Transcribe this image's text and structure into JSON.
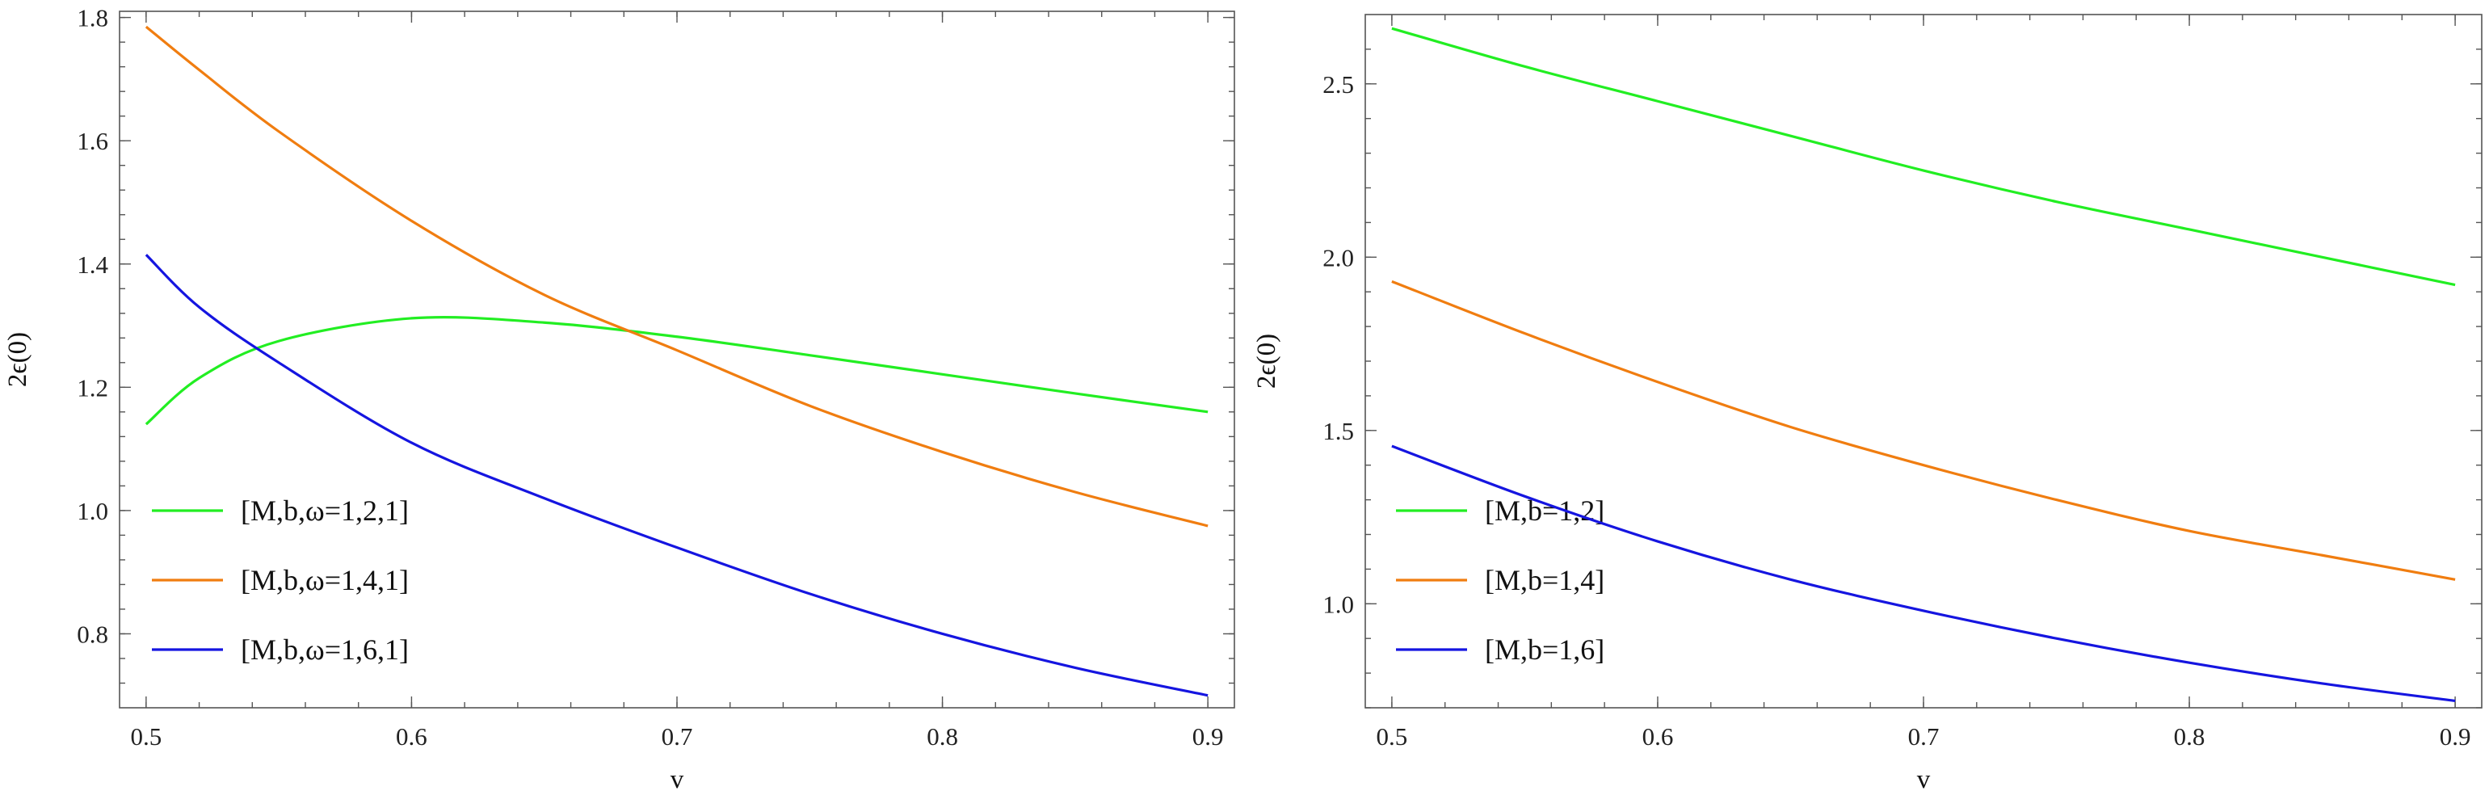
{
  "colors": {
    "green": "#22ee22",
    "orange": "#f07d10",
    "blue": "#1515e0"
  },
  "chart_data": [
    {
      "type": "line",
      "xlabel": "v",
      "ylabel": "2ϵ(0)",
      "xlim": [
        0.49,
        0.91
      ],
      "ylim": [
        0.68,
        1.81
      ],
      "xticks": [
        0.5,
        0.6,
        0.7,
        0.8,
        0.9
      ],
      "xtick_labels": [
        "0.5",
        "0.6",
        "0.7",
        "0.8",
        "0.9"
      ],
      "yticks": [
        0.8,
        1.0,
        1.2,
        1.4,
        1.6,
        1.8
      ],
      "ytick_labels": [
        "0.8",
        "1.0",
        "1.2",
        "1.4",
        "1.6",
        "1.8"
      ],
      "legend_position": "bottom-left",
      "x": [
        0.5,
        0.52,
        0.55,
        0.6,
        0.65,
        0.7,
        0.75,
        0.8,
        0.85,
        0.9
      ],
      "series": [
        {
          "name": "[M,b,ω=1,2,1]",
          "color": "#22ee22",
          "values": [
            1.14,
            1.215,
            1.275,
            1.312,
            1.305,
            1.282,
            1.252,
            1.221,
            1.19,
            1.16
          ]
        },
        {
          "name": "[M,b,ω=1,4,1]",
          "color": "#f07d10",
          "values": [
            1.785,
            1.715,
            1.615,
            1.47,
            1.35,
            1.26,
            1.17,
            1.095,
            1.03,
            0.975
          ]
        },
        {
          "name": "[M,b,ω=1,6,1]",
          "color": "#1515e0",
          "values": [
            1.415,
            1.33,
            1.24,
            1.11,
            1.02,
            0.94,
            0.865,
            0.8,
            0.745,
            0.7
          ]
        }
      ]
    },
    {
      "type": "line",
      "xlabel": "v",
      "ylabel": "2ϵ(0)",
      "xlim": [
        0.49,
        0.91
      ],
      "ylim": [
        0.7,
        2.7
      ],
      "xticks": [
        0.5,
        0.6,
        0.7,
        0.8,
        0.9
      ],
      "xtick_labels": [
        "0.5",
        "0.6",
        "0.7",
        "0.8",
        "0.9"
      ],
      "yticks": [
        1.0,
        1.5,
        2.0,
        2.5
      ],
      "ytick_labels": [
        "1.0",
        "1.5",
        "2.0",
        "2.5"
      ],
      "legend_position": "bottom-left",
      "x": [
        0.5,
        0.55,
        0.6,
        0.65,
        0.7,
        0.75,
        0.8,
        0.85,
        0.9
      ],
      "series": [
        {
          "name": "[M,b=1,2]",
          "color": "#22ee22",
          "values": [
            2.66,
            2.55,
            2.45,
            2.35,
            2.25,
            2.16,
            2.08,
            2.0,
            1.92
          ]
        },
        {
          "name": "[M,b=1,4]",
          "color": "#f07d10",
          "values": [
            1.93,
            1.78,
            1.64,
            1.51,
            1.4,
            1.3,
            1.21,
            1.14,
            1.07
          ]
        },
        {
          "name": "[M,b=1,6]",
          "color": "#1515e0",
          "values": [
            1.455,
            1.31,
            1.18,
            1.07,
            0.98,
            0.9,
            0.83,
            0.77,
            0.72
          ]
        }
      ]
    }
  ]
}
